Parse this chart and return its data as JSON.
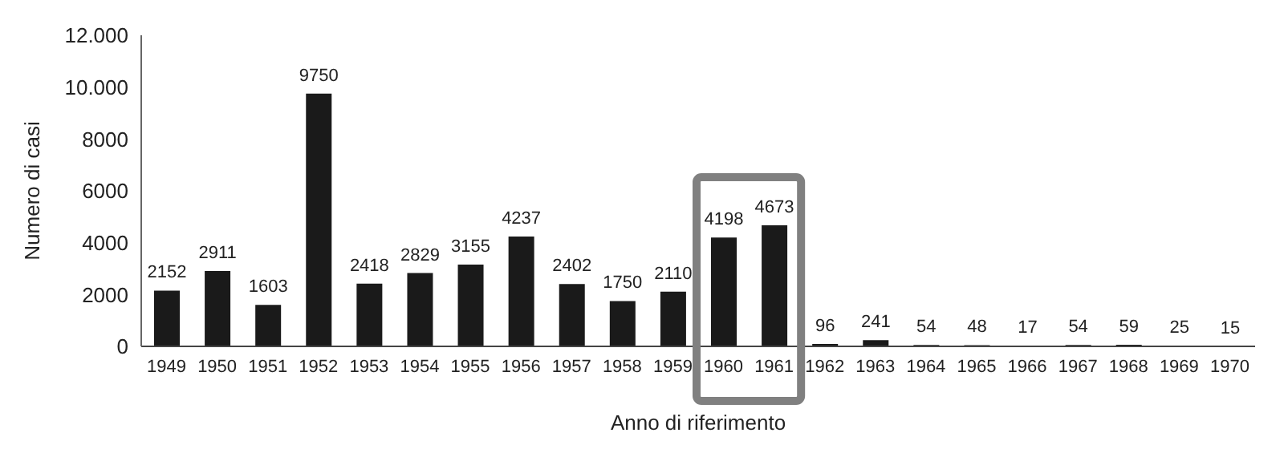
{
  "chart_data": {
    "type": "bar",
    "xlabel": "Anno di riferimento",
    "ylabel": "Numero di casi",
    "categories": [
      "1949",
      "1950",
      "1951",
      "1952",
      "1953",
      "1954",
      "1955",
      "1956",
      "1957",
      "1958",
      "1959",
      "1960",
      "1961",
      "1962",
      "1963",
      "1964",
      "1965",
      "1966",
      "1967",
      "1968",
      "1969",
      "1970"
    ],
    "values": [
      2152,
      2911,
      1603,
      9750,
      2418,
      2829,
      3155,
      4237,
      2402,
      1750,
      2110,
      4198,
      4673,
      96,
      241,
      54,
      48,
      17,
      54,
      59,
      25,
      15
    ],
    "color": "#1a1a1a",
    "ylim": [
      0,
      12000
    ],
    "yticks": [
      0,
      2000,
      4000,
      6000,
      8000,
      {
        "value": 10000,
        "label": "10.000"
      },
      {
        "value": 12000,
        "label": "12.000"
      }
    ],
    "data_labels": true,
    "grid": false
  }
}
